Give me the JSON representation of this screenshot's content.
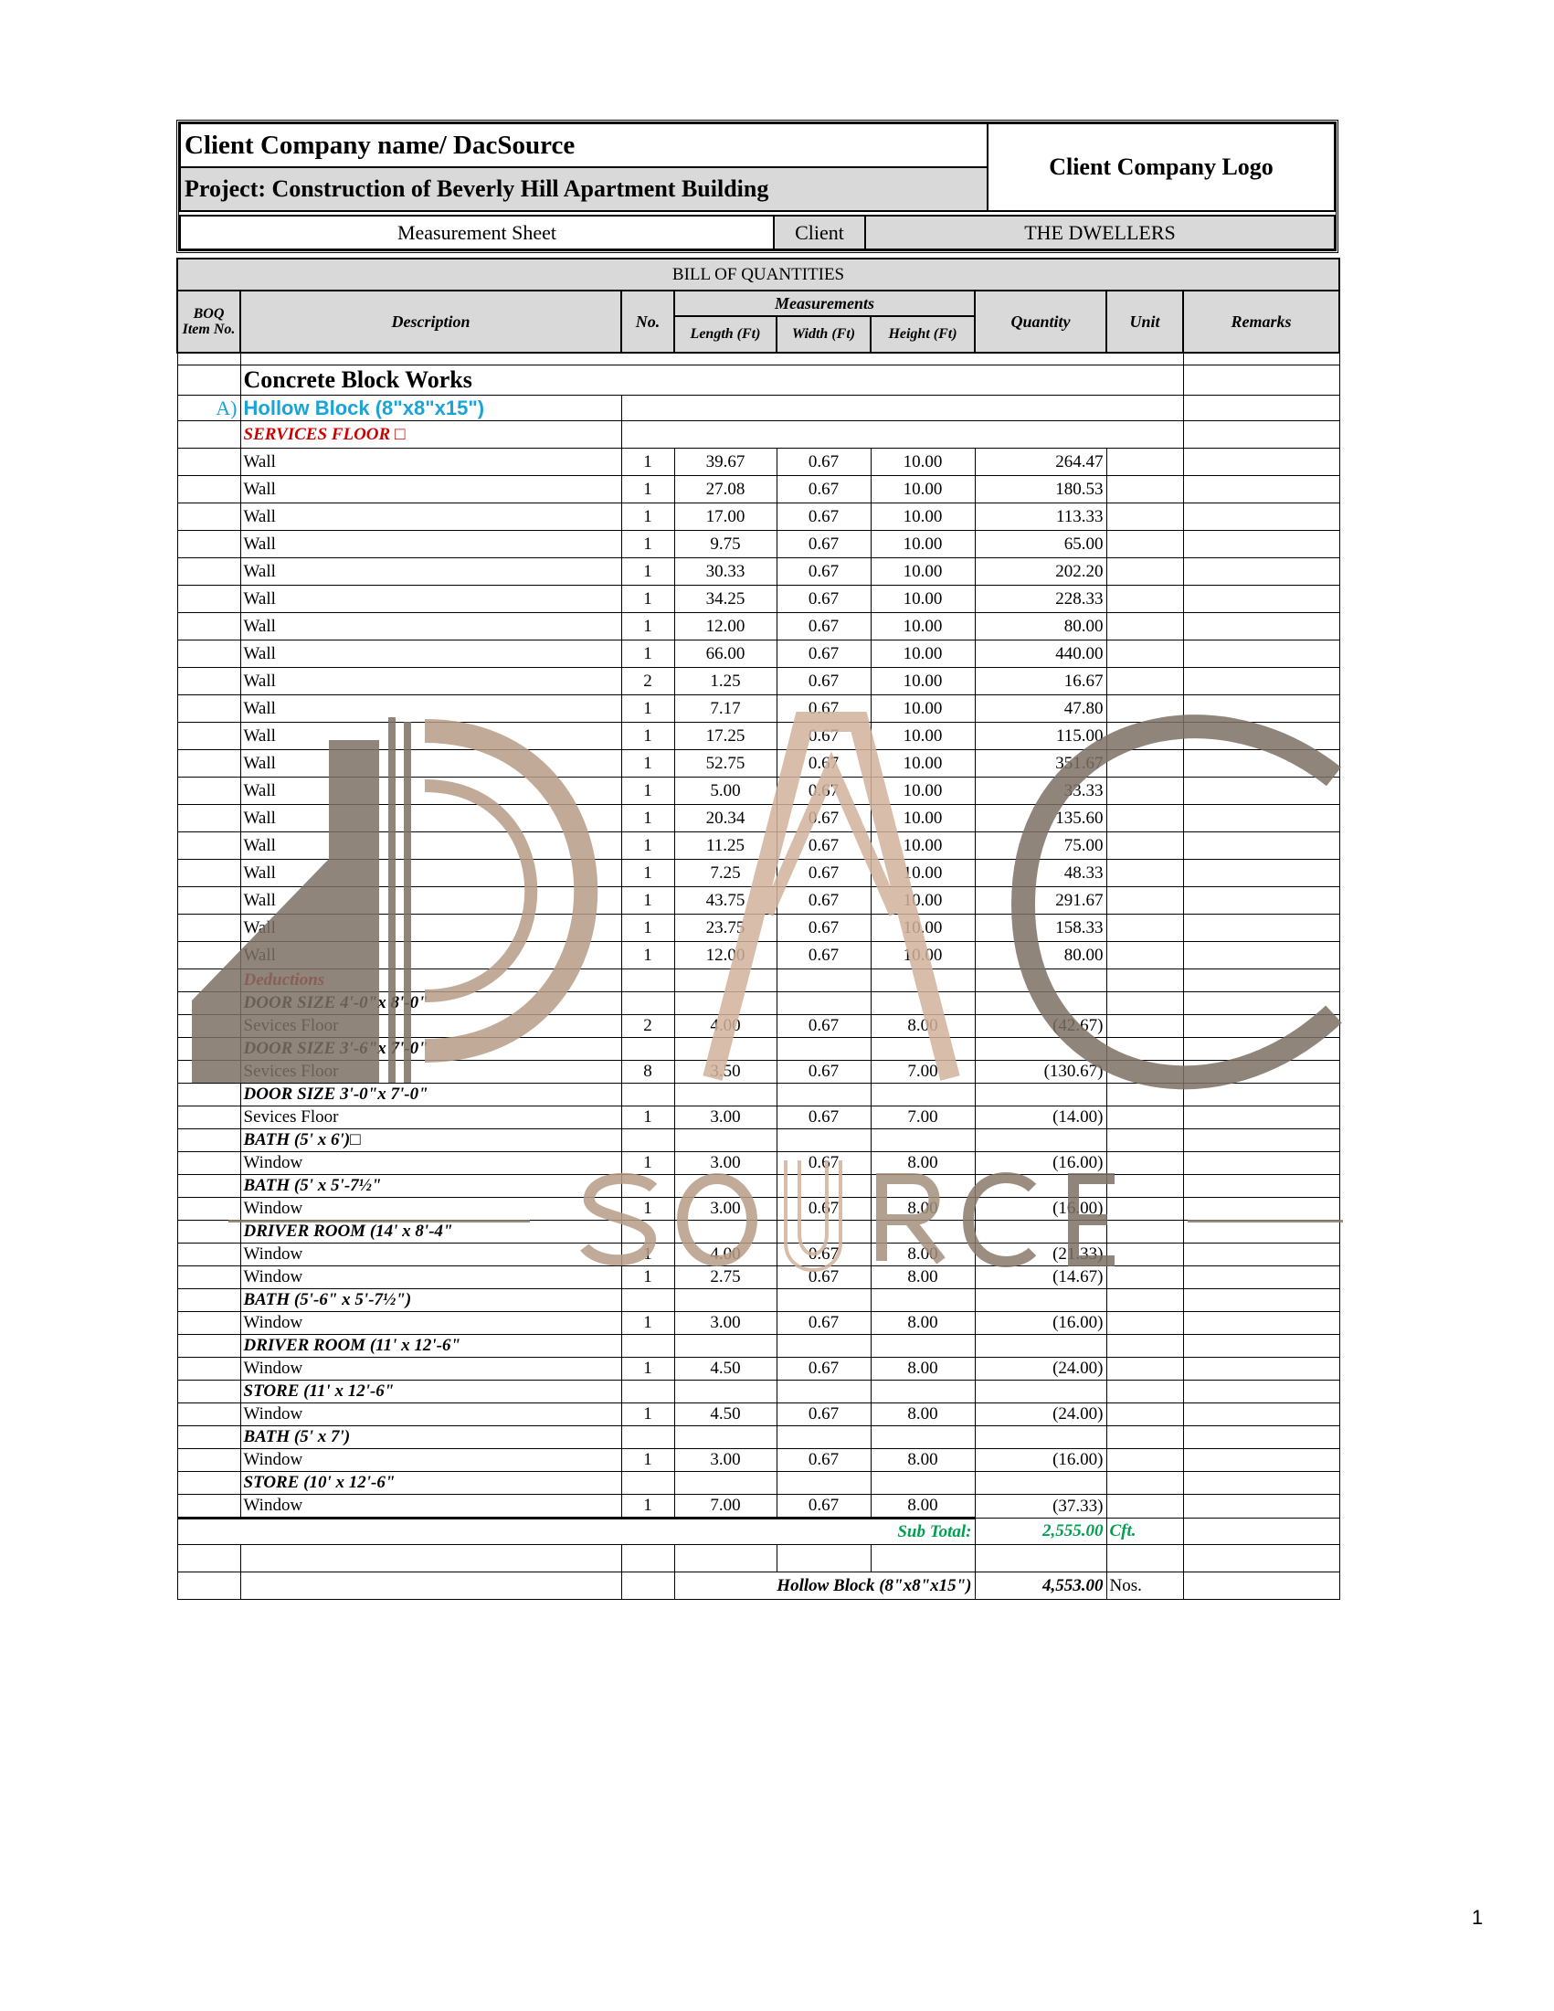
{
  "header": {
    "company": "Client Company name/ DacSource",
    "project": "Project: Construction of Beverly Hill Apartment Building",
    "logo_placeholder": "Client Company Logo",
    "sheet_title": "Measurement Sheet",
    "client_label": "Client",
    "client_name": "THE DWELLERS"
  },
  "table": {
    "title": "BILL OF QUANTITIES",
    "columns": {
      "boq": "BOQ Item No.",
      "description": "Description",
      "no": "No.",
      "measurements": "Measurements",
      "length": "Length (Ft)",
      "width": "Width (Ft)",
      "height": "Height (Ft)",
      "quantity": "Quantity",
      "unit": "Unit",
      "remarks": "Remarks"
    },
    "section": "Concrete Block Works",
    "item_letter": "A)",
    "item_name": "Hollow Block (8\"x8\"x15\")",
    "rows": [
      {
        "type": "red",
        "desc": "SERVICES FLOOR □"
      },
      {
        "type": "wall",
        "desc": "Wall",
        "no": "1",
        "l": "39.67",
        "w": "0.67",
        "h": "10.00",
        "q": "264.47"
      },
      {
        "type": "wall",
        "desc": "Wall",
        "no": "1",
        "l": "27.08",
        "w": "0.67",
        "h": "10.00",
        "q": "180.53"
      },
      {
        "type": "wall",
        "desc": "Wall",
        "no": "1",
        "l": "17.00",
        "w": "0.67",
        "h": "10.00",
        "q": "113.33"
      },
      {
        "type": "wall",
        "desc": "Wall",
        "no": "1",
        "l": "9.75",
        "w": "0.67",
        "h": "10.00",
        "q": "65.00"
      },
      {
        "type": "wall",
        "desc": "Wall",
        "no": "1",
        "l": "30.33",
        "w": "0.67",
        "h": "10.00",
        "q": "202.20"
      },
      {
        "type": "wall",
        "desc": "Wall",
        "no": "1",
        "l": "34.25",
        "w": "0.67",
        "h": "10.00",
        "q": "228.33"
      },
      {
        "type": "wall",
        "desc": "Wall",
        "no": "1",
        "l": "12.00",
        "w": "0.67",
        "h": "10.00",
        "q": "80.00"
      },
      {
        "type": "wall",
        "desc": "Wall",
        "no": "1",
        "l": "66.00",
        "w": "0.67",
        "h": "10.00",
        "q": "440.00"
      },
      {
        "type": "wall",
        "desc": "Wall",
        "no": "2",
        "l": "1.25",
        "w": "0.67",
        "h": "10.00",
        "q": "16.67"
      },
      {
        "type": "wall",
        "desc": "Wall",
        "no": "1",
        "l": "7.17",
        "w": "0.67",
        "h": "10.00",
        "q": "47.80"
      },
      {
        "type": "wall",
        "desc": "Wall",
        "no": "1",
        "l": "17.25",
        "w": "0.67",
        "h": "10.00",
        "q": "115.00"
      },
      {
        "type": "wall",
        "desc": "Wall",
        "no": "1",
        "l": "52.75",
        "w": "0.67",
        "h": "10.00",
        "q": "351.67"
      },
      {
        "type": "wall",
        "desc": "Wall",
        "no": "1",
        "l": "5.00",
        "w": "0.67",
        "h": "10.00",
        "q": "33.33"
      },
      {
        "type": "wall",
        "desc": "Wall",
        "no": "1",
        "l": "20.34",
        "w": "0.67",
        "h": "10.00",
        "q": "135.60"
      },
      {
        "type": "wall",
        "desc": "Wall",
        "no": "1",
        "l": "11.25",
        "w": "0.67",
        "h": "10.00",
        "q": "75.00"
      },
      {
        "type": "wall",
        "desc": "Wall",
        "no": "1",
        "l": "7.25",
        "w": "0.67",
        "h": "10.00",
        "q": "48.33"
      },
      {
        "type": "wall",
        "desc": "Wall",
        "no": "1",
        "l": "43.75",
        "w": "0.67",
        "h": "10.00",
        "q": "291.67"
      },
      {
        "type": "wall",
        "desc": "Wall",
        "no": "1",
        "l": "23.75",
        "w": "0.67",
        "h": "10.00",
        "q": "158.33"
      },
      {
        "type": "wall",
        "desc": "Wall",
        "no": "1",
        "l": "12.00",
        "w": "0.67",
        "h": "10.00",
        "q": "80.00"
      },
      {
        "type": "redded",
        "desc": "Deductions"
      },
      {
        "type": "head",
        "desc": "DOOR SIZE 4'-0\"x 8'-0\""
      },
      {
        "type": "ded",
        "desc": "Sevices Floor",
        "no": "2",
        "l": "4.00",
        "w": "0.67",
        "h": "8.00",
        "q": "(42.67)"
      },
      {
        "type": "head",
        "desc": "DOOR SIZE 3'-6\"x 7'-0\""
      },
      {
        "type": "ded",
        "desc": "Sevices Floor",
        "no": "8",
        "l": "3.50",
        "w": "0.67",
        "h": "7.00",
        "q": "(130.67)"
      },
      {
        "type": "head",
        "desc": "DOOR SIZE 3'-0\"x 7'-0\""
      },
      {
        "type": "ded",
        "desc": "Sevices Floor",
        "no": "1",
        "l": "3.00",
        "w": "0.67",
        "h": "7.00",
        "q": "(14.00)"
      },
      {
        "type": "head",
        "desc": "BATH (5' x 6')□"
      },
      {
        "type": "ded",
        "desc": "Window",
        "no": "1",
        "l": "3.00",
        "w": "0.67",
        "h": "8.00",
        "q": "(16.00)"
      },
      {
        "type": "head",
        "desc": "BATH (5' x 5'-7½\""
      },
      {
        "type": "ded",
        "desc": "Window",
        "no": "1",
        "l": "3.00",
        "w": "0.67",
        "h": "8.00",
        "q": "(16.00)"
      },
      {
        "type": "head",
        "desc": "DRIVER ROOM (14' x 8'-4\""
      },
      {
        "type": "ded",
        "desc": "Window",
        "no": "1",
        "l": "4.00",
        "w": "0.67",
        "h": "8.00",
        "q": "(21.33)"
      },
      {
        "type": "ded",
        "desc": "Window",
        "no": "1",
        "l": "2.75",
        "w": "0.67",
        "h": "8.00",
        "q": "(14.67)"
      },
      {
        "type": "head",
        "desc": "BATH (5'-6\" x  5'-7½\")"
      },
      {
        "type": "ded",
        "desc": "Window",
        "no": "1",
        "l": "3.00",
        "w": "0.67",
        "h": "8.00",
        "q": "(16.00)"
      },
      {
        "type": "head",
        "desc": "DRIVER ROOM (11' x 12'-6\""
      },
      {
        "type": "ded",
        "desc": "Window",
        "no": "1",
        "l": "4.50",
        "w": "0.67",
        "h": "8.00",
        "q": "(24.00)"
      },
      {
        "type": "head",
        "desc": "STORE (11' x 12'-6\""
      },
      {
        "type": "ded",
        "desc": "Window",
        "no": "1",
        "l": "4.50",
        "w": "0.67",
        "h": "8.00",
        "q": "(24.00)"
      },
      {
        "type": "head",
        "desc": "BATH (5' x 7')"
      },
      {
        "type": "ded",
        "desc": "Window",
        "no": "1",
        "l": "3.00",
        "w": "0.67",
        "h": "8.00",
        "q": "(16.00)"
      },
      {
        "type": "head",
        "desc": "STORE (10' x 12'-6\""
      },
      {
        "type": "ded",
        "desc": "Window",
        "no": "1",
        "l": "7.00",
        "w": "0.67",
        "h": "8.00",
        "q": "(37.33)"
      }
    ],
    "subtotal": {
      "label": "Sub Total:",
      "value": "2,555.00",
      "unit": "Cft."
    },
    "total": {
      "label": "Hollow Block (8\"x8\"x15\")",
      "value": "4,553.00",
      "unit": "Nos."
    }
  },
  "watermark": {
    "text_main": "DAC",
    "text_sub": "SOURCE"
  },
  "page_number": "1",
  "colors": {
    "header_grey": "#d9d9d9",
    "item_blue": "#1aa3d9",
    "red": "#d00000",
    "green": "#00a050",
    "watermark_brown": "#8a7a6a",
    "watermark_tan": "#c9a890"
  }
}
